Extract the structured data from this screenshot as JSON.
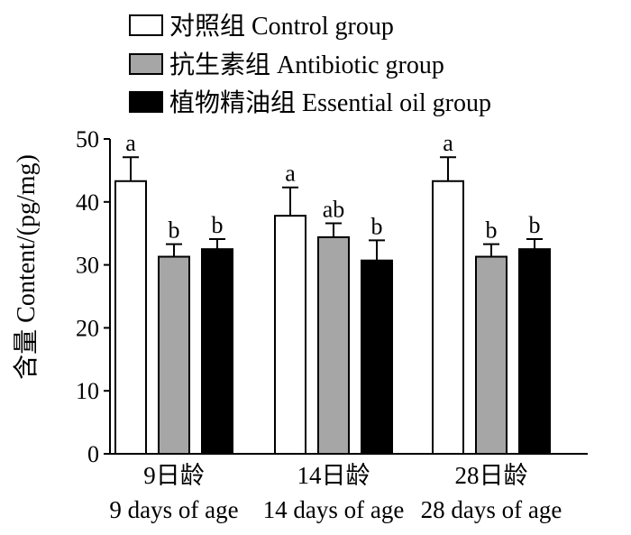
{
  "chart_data": {
    "type": "bar",
    "ylabel": "含量 Content/(pg/mg)",
    "ylim": [
      0,
      50
    ],
    "yticks": [
      0,
      10,
      20,
      30,
      40,
      50
    ],
    "grid": false,
    "legend_position": "top-left",
    "categories": [
      {
        "zh": "9日龄",
        "en": "9 days of age"
      },
      {
        "zh": "14日龄",
        "en": "14 days of age"
      },
      {
        "zh": "28日龄",
        "en": "28 days of age"
      }
    ],
    "series": [
      {
        "name": "对照组 Control group",
        "color": "#ffffff",
        "values": [
          43.3,
          37.8,
          43.3
        ],
        "errors": [
          3.8,
          4.5,
          3.8
        ],
        "letters": [
          "a",
          "a",
          "a"
        ]
      },
      {
        "name": "抗生素组 Antibiotic group",
        "color": "#a6a6a6",
        "values": [
          31.3,
          34.4,
          31.3
        ],
        "errors": [
          2.0,
          2.2,
          2.0
        ],
        "letters": [
          "b",
          "ab",
          "b"
        ]
      },
      {
        "name": "植物精油组 Essential oil group",
        "color": "#000000",
        "values": [
          32.5,
          30.7,
          32.5
        ],
        "errors": [
          1.6,
          3.2,
          1.6
        ],
        "letters": [
          "b",
          "b",
          "b"
        ]
      }
    ]
  }
}
